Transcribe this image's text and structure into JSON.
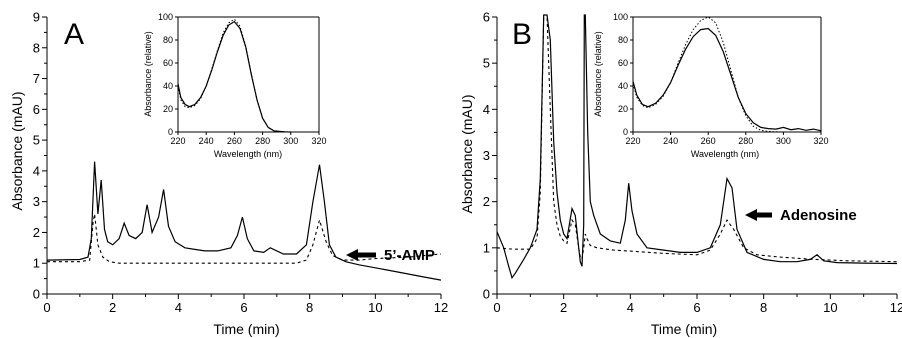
{
  "chart_data": [
    {
      "panel": "A",
      "type": "line",
      "xlabel": "Time (min)",
      "ylabel": "Absorbance (mAU)",
      "xlim": [
        0,
        12
      ],
      "ylim": [
        0,
        9
      ],
      "xticks": [
        "0",
        "2",
        "4",
        "6",
        "8",
        "10",
        "12"
      ],
      "yticks": [
        "0",
        "1",
        "2",
        "3",
        "4",
        "5",
        "6",
        "7",
        "8",
        "9"
      ],
      "annotation": {
        "text": "5’-AMP",
        "x": 8.3,
        "y": 2.4
      },
      "series": [
        {
          "style": "solid",
          "x": [
            0,
            1.0,
            1.25,
            1.35,
            1.45,
            1.55,
            1.65,
            1.75,
            1.85,
            2.0,
            2.2,
            2.35,
            2.5,
            2.7,
            2.9,
            3.05,
            3.2,
            3.4,
            3.55,
            3.7,
            3.9,
            4.2,
            4.5,
            4.8,
            5.2,
            5.6,
            5.8,
            5.95,
            6.1,
            6.3,
            6.6,
            6.8,
            7.2,
            7.6,
            7.9,
            8.1,
            8.3,
            8.45,
            8.6,
            8.8,
            9.1,
            9.5,
            10,
            10.5,
            11,
            11.5,
            12
          ],
          "y": [
            1.1,
            1.12,
            1.2,
            1.8,
            4.3,
            2.6,
            3.7,
            2.1,
            1.7,
            1.6,
            1.8,
            2.3,
            1.9,
            1.8,
            2.0,
            2.9,
            2.0,
            2.5,
            3.4,
            2.2,
            1.7,
            1.5,
            1.45,
            1.4,
            1.4,
            1.5,
            1.9,
            2.5,
            1.8,
            1.4,
            1.35,
            1.5,
            1.3,
            1.3,
            1.6,
            3.0,
            4.2,
            3.0,
            1.6,
            1.2,
            1.05,
            0.95,
            0.85,
            0.75,
            0.65,
            0.55,
            0.45
          ]
        },
        {
          "style": "dashed",
          "x": [
            0,
            1.0,
            1.3,
            1.4,
            1.45,
            1.55,
            1.7,
            1.9,
            2.2,
            2.6,
            3.0,
            4.0,
            5.0,
            6.0,
            6.5,
            7.0,
            7.6,
            7.9,
            8.1,
            8.3,
            8.5,
            8.7,
            9.0,
            9.5,
            10,
            11,
            12
          ],
          "y": [
            1.05,
            1.05,
            1.1,
            2.3,
            2.6,
            1.6,
            1.2,
            1.05,
            1.0,
            1.0,
            1.0,
            1.0,
            1.0,
            1.0,
            1.0,
            1.0,
            1.0,
            1.1,
            1.6,
            2.4,
            1.7,
            1.25,
            1.1,
            1.1,
            1.15,
            1.2,
            1.3
          ]
        }
      ],
      "inset": {
        "xlabel": "Wavelength (nm)",
        "ylabel": "Absorbance (relative)",
        "xlim": [
          220,
          320
        ],
        "ylim": [
          0,
          100
        ],
        "xticks": [
          "220",
          "240",
          "260",
          "280",
          "300",
          "320"
        ],
        "yticks": [
          "0",
          "20",
          "40",
          "60",
          "80",
          "100"
        ],
        "series": [
          {
            "style": "solid",
            "x": [
              220,
              222,
              225,
              228,
              232,
              236,
              240,
              244,
              248,
              252,
              256,
              260,
              264,
              268,
              272,
              276,
              280,
              284,
              288,
              292,
              296,
              300
            ],
            "y": [
              42,
              30,
              24,
              22,
              24,
              30,
              40,
              54,
              70,
              84,
              93,
              96,
              90,
              74,
              50,
              28,
              12,
              4,
              1,
              0.5,
              0.2,
              0
            ]
          },
          {
            "style": "dotted",
            "x": [
              220,
              222,
              225,
              228,
              232,
              236,
              240,
              244,
              248,
              252,
              256,
              260,
              264,
              268,
              272,
              276,
              280,
              284,
              288,
              292,
              296,
              300
            ],
            "y": [
              40,
              28,
              22,
              21,
              23,
              29,
              40,
              55,
              71,
              86,
              95,
              98,
              92,
              75,
              51,
              28,
              12,
              4,
              1,
              0.5,
              0.2,
              0
            ]
          }
        ]
      }
    },
    {
      "panel": "B",
      "type": "line",
      "xlabel": "Time (min)",
      "ylabel": "Absorbance (mAU)",
      "xlim": [
        0,
        12
      ],
      "ylim": [
        0,
        6
      ],
      "xticks": [
        "0",
        "2",
        "4",
        "6",
        "8",
        "10",
        "12"
      ],
      "yticks": [
        "0",
        "1",
        "2",
        "3",
        "4",
        "5",
        "6"
      ],
      "annotation": {
        "text": "Adenosine",
        "x": 7.2,
        "y": 1.6
      },
      "series": [
        {
          "style": "solid",
          "x": [
            0,
            0.2,
            0.35,
            0.45,
            0.55,
            0.8,
            1.0,
            1.2,
            1.3,
            1.4,
            1.5,
            1.6,
            1.7,
            1.8,
            1.9,
            2.0,
            2.1,
            2.25,
            2.35,
            2.45,
            2.5,
            2.55,
            2.6,
            2.62,
            2.65,
            2.72,
            2.8,
            2.9,
            3.1,
            3.4,
            3.7,
            3.85,
            3.95,
            4.05,
            4.2,
            4.5,
            5.0,
            5.5,
            6.0,
            6.4,
            6.7,
            6.9,
            7.05,
            7.2,
            7.5,
            8.0,
            8.5,
            9.0,
            9.4,
            9.6,
            9.8,
            10.2,
            11,
            12
          ],
          "y": [
            1.35,
            1.0,
            0.6,
            0.35,
            0.45,
            0.75,
            1.0,
            1.4,
            2.5,
            6.2,
            6.2,
            5.5,
            3.3,
            2.2,
            1.6,
            1.3,
            1.2,
            1.85,
            1.7,
            1.0,
            0.7,
            0.6,
            1.5,
            6.2,
            6.2,
            3.5,
            2.0,
            1.7,
            1.3,
            1.15,
            1.1,
            1.6,
            2.4,
            1.8,
            1.3,
            1.0,
            0.95,
            0.9,
            0.9,
            1.0,
            1.5,
            2.5,
            2.3,
            1.4,
            0.9,
            0.75,
            0.7,
            0.7,
            0.75,
            0.85,
            0.72,
            0.68,
            0.67,
            0.66
          ]
        },
        {
          "style": "dashed",
          "x": [
            0,
            0.3,
            0.6,
            1.0,
            1.2,
            1.3,
            1.4,
            1.5,
            1.6,
            1.7,
            1.8,
            1.9,
            2.0,
            2.1,
            2.25,
            2.35,
            2.45,
            2.5,
            2.55,
            2.6,
            2.65,
            2.7,
            2.8,
            3.0,
            3.5,
            4.0,
            5.0,
            6.0,
            6.4,
            6.7,
            6.9,
            7.1,
            7.4,
            7.8,
            8.5,
            9.5,
            10.5,
            12
          ],
          "y": [
            1.0,
            0.98,
            0.97,
            0.97,
            1.2,
            2.2,
            6.2,
            6.2,
            4.0,
            2.0,
            1.5,
            1.25,
            1.15,
            1.1,
            1.6,
            1.5,
            1.0,
            0.8,
            0.75,
            1.0,
            1.3,
            1.2,
            1.05,
            1.0,
            0.95,
            0.93,
            0.88,
            0.85,
            0.95,
            1.3,
            1.6,
            1.4,
            1.0,
            0.85,
            0.8,
            0.75,
            0.72,
            0.7
          ]
        }
      ],
      "inset": {
        "xlabel": "Wavelength (nm)",
        "ylabel": "Absorbance (relative)",
        "xlim": [
          220,
          320
        ],
        "ylim": [
          0,
          100
        ],
        "xticks": [
          "220",
          "240",
          "260",
          "280",
          "300",
          "320"
        ],
        "yticks": [
          "0",
          "20",
          "40",
          "60",
          "80",
          "100"
        ],
        "series": [
          {
            "style": "solid",
            "x": [
              220,
              222,
              225,
              228,
              232,
              236,
              240,
              244,
              248,
              252,
              256,
              260,
              264,
              268,
              272,
              276,
              280,
              284,
              288,
              292,
              296,
              300,
              304,
              308,
              312,
              316,
              320
            ],
            "y": [
              44,
              32,
              24,
              22,
              25,
              32,
              43,
              58,
              72,
              83,
              89,
              90,
              84,
              70,
              50,
              30,
              16,
              8,
              4,
              3,
              2.5,
              4,
              2,
              3,
              1.5,
              2.5,
              1
            ]
          },
          {
            "style": "dotted",
            "x": [
              220,
              222,
              225,
              228,
              232,
              236,
              240,
              244,
              248,
              252,
              256,
              260,
              264,
              268,
              272,
              276,
              280,
              284,
              288,
              292,
              296,
              300,
              304,
              308,
              312,
              316,
              320
            ],
            "y": [
              42,
              30,
              23,
              21,
              24,
              31,
              43,
              60,
              76,
              89,
              97,
              100,
              95,
              78,
              54,
              30,
              14,
              5,
              1.5,
              0.5,
              0.2,
              0,
              0,
              0,
              0,
              0,
              0
            ]
          }
        ]
      }
    }
  ]
}
